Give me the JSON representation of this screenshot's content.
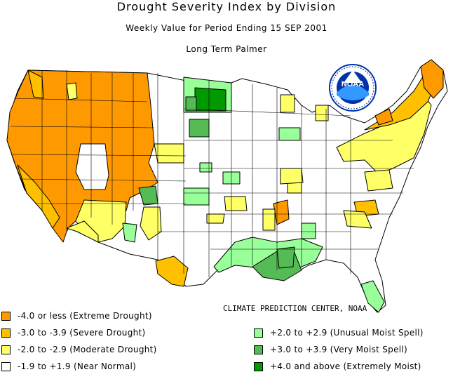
{
  "header": {
    "title": "Drought Severity Index by Division",
    "subtitle": "Weekly Value for Period Ending 15 SEP 2001",
    "index_name": "Long Term Palmer"
  },
  "logo": {
    "text": "NOAA",
    "ring_text": "NATIONAL OCEANIC AND ATMOSPHERIC ADMINISTRATION"
  },
  "credit": "CLIMATE PREDICTION CENTER, NOAA",
  "colors": {
    "extreme_drought": "#ff9900",
    "severe_drought": "#ffc000",
    "moderate_drought": "#ffff66",
    "near_normal": "#ffffff",
    "unusual_moist": "#99ff99",
    "very_moist": "#55bb55",
    "extremely_moist": "#009900"
  },
  "legend": [
    {
      "label": "-4.0 or less (Extreme Drought)",
      "color": "#ff9900"
    },
    {
      "label": "-3.0 to -3.9 (Severe Drought)",
      "color": "#ffc000"
    },
    {
      "label": "-2.0 to -2.9 (Moderate Drought)",
      "color": "#ffff66"
    },
    {
      "label": "-1.9 to +1.9 (Near Normal)",
      "color": "#ffffff"
    },
    {
      "label": "+2.0 to +2.9 (Unusual Moist Spell)",
      "color": "#99ff99"
    },
    {
      "label": "+3.0 to +3.9 (Very Moist Spell)",
      "color": "#55bb55"
    },
    {
      "label": "+4.0 and above (Extremely Moist)",
      "color": "#009900"
    }
  ]
}
